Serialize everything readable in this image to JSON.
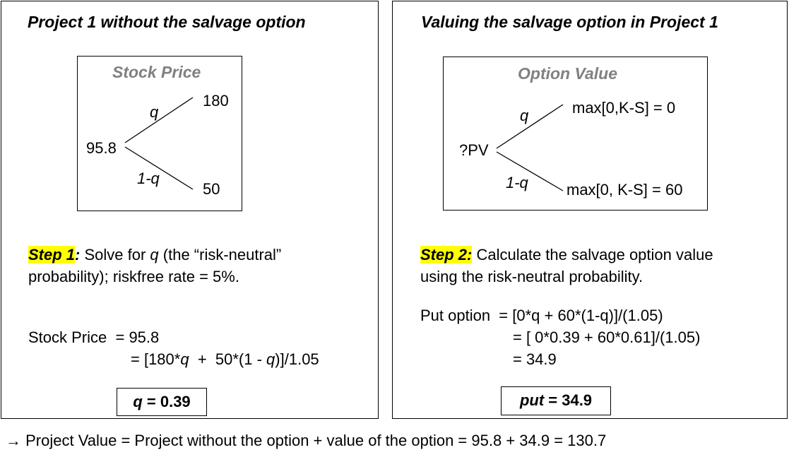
{
  "left": {
    "title": "Project 1 without the salvage option",
    "tree": {
      "title": "Stock Price",
      "root": "95.8",
      "up_value": "180",
      "down_value": "50",
      "up_label": "q",
      "down_label": "1-q"
    },
    "step_label": "Step 1",
    "step_colon": ":",
    "step_text_1": " Solve for ",
    "step_q": "q",
    "step_text_2": " (the “risk-neutral”",
    "step_line2": "probability); riskfree rate = 5%.",
    "eq1": "Stock Price  = 95.8",
    "eq2_a": "= [180*",
    "eq2_q1": "q",
    "eq2_b": "  +  50*(1 - ",
    "eq2_q2": "q",
    "eq2_c": ")]/1.05",
    "result_var": "q",
    "result_val": " = 0.39"
  },
  "right": {
    "title": "Valuing the salvage option in Project 1",
    "tree": {
      "title": "Option Value",
      "root": "?PV",
      "up_value": "max[0,K-S] = 0",
      "down_value": "max[0, K-S] = 60",
      "up_label": "q",
      "down_label": "1-q"
    },
    "step_label": "Step 2:",
    "step_text": " Calculate the salvage option value",
    "step_line2": "using the risk-neutral probability.",
    "eq1": "Put option  = [0*q + 60*(1-q)]/(1.05)",
    "eq2": "= [ 0*0.39 + 60*0.61]/(1.05)",
    "eq3": "= 34.9",
    "result_var": "put",
    "result_val": " = 34.9"
  },
  "footer": "→ Project Value = Project without the option + value of the option = 95.8 + 34.9 = 130.7"
}
